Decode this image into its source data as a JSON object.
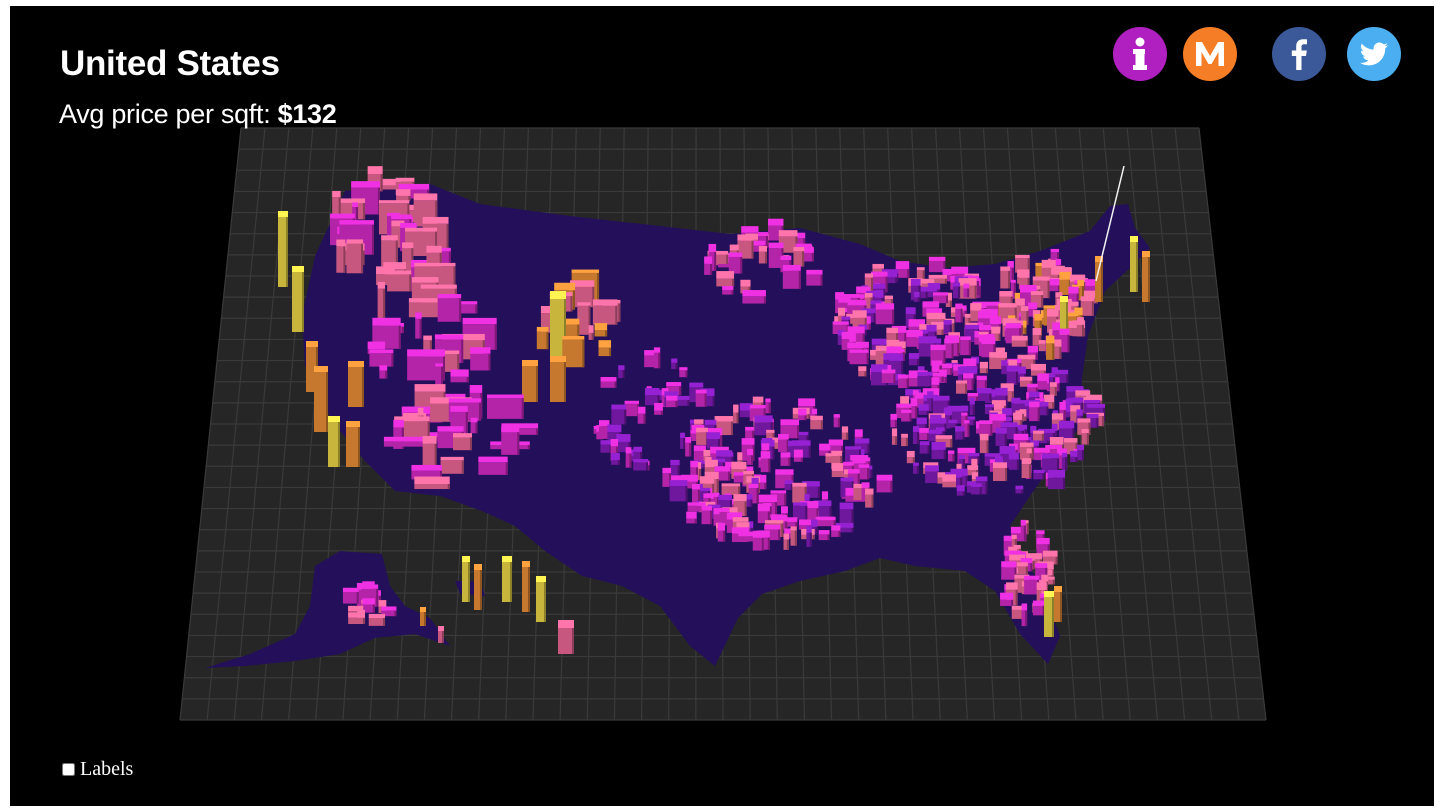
{
  "header": {
    "title": "United States",
    "metric_label": "Avg price per sqft:",
    "metric_value": "$132"
  },
  "icons": [
    {
      "name": "info-icon",
      "glyph": "i",
      "color": "#b01fc0"
    },
    {
      "name": "medium-icon",
      "glyph": "M",
      "color": "#f47d25"
    },
    {
      "name": "facebook-icon",
      "glyph": "f",
      "color": "#3b5998"
    },
    {
      "name": "twitter-icon",
      "glyph": "bird",
      "color": "#4aaef1"
    }
  ],
  "controls": {
    "labels_checkbox": {
      "label": "Labels",
      "checked": false
    }
  },
  "map": {
    "style": "3D extruded county prisms on a perspective grid",
    "color_scale": [
      "#24105a",
      "#8e1fc9",
      "#e52ed8",
      "#ff6fa3",
      "#ff9a3c",
      "#ffe84d"
    ],
    "grid_color": "#3a3a3a",
    "plane_color": "#262626"
  }
}
